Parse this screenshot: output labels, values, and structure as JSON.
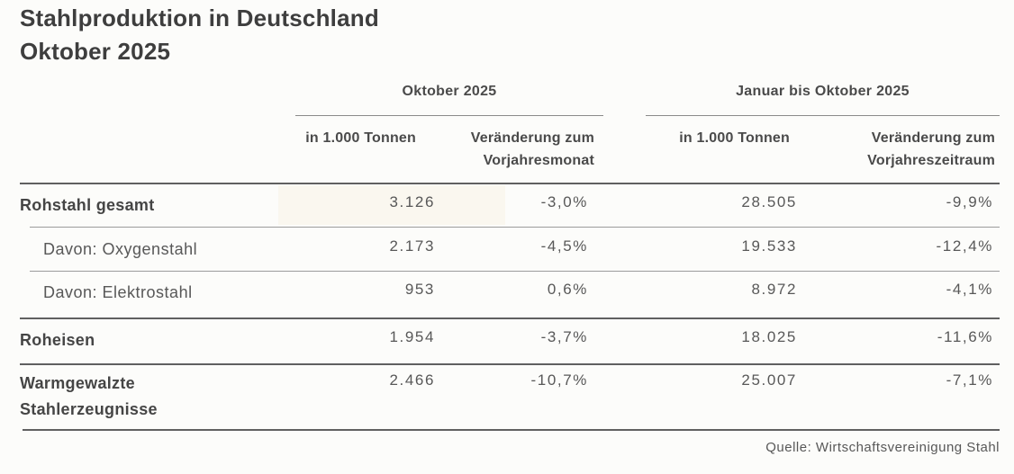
{
  "title": {
    "line1": "Stahlproduktion in Deutschland",
    "line2": "Oktober 2025"
  },
  "colors": {
    "background": "#fcfcfa",
    "text_dark": "#3e3e3e",
    "text_body": "#585858",
    "line_dark": "#606060",
    "line_light": "#9b9b9b",
    "cell_highlight": "#f8f3e6"
  },
  "chart_data": {
    "type": "table",
    "title": "Stahlproduktion in Deutschland",
    "subtitle": "Oktober 2025",
    "column_groups": [
      {
        "label": "Oktober 2025",
        "columns": [
          "in 1.000 Tonnen",
          "Veränderung zum Vorjahresmonat"
        ]
      },
      {
        "label": "Januar bis Oktober 2025",
        "columns": [
          "in 1.000 Tonnen",
          "Veränderung zum Vorjahreszeitraum"
        ]
      }
    ],
    "rows": [
      {
        "label": "Rohstahl gesamt",
        "style": "main",
        "values": [
          "3.126",
          "-3,0%",
          "28.505",
          "-9,9%"
        ]
      },
      {
        "label": "Davon: Oxygenstahl",
        "style": "sub",
        "values": [
          "2.173",
          "-4,5%",
          "19.533",
          "-12,4%"
        ]
      },
      {
        "label": "Davon: Elektrostahl",
        "style": "sub",
        "values": [
          "953",
          "0,6%",
          "8.972",
          "-4,1%"
        ]
      },
      {
        "label": "Roheisen",
        "style": "main",
        "values": [
          "1.954",
          "-3,7%",
          "18.025",
          "-11,6%"
        ]
      },
      {
        "label": "Warmgewalzte Stahlerzeugnisse",
        "style": "main",
        "values": [
          "2.466",
          "-10,7%",
          "25.007",
          "-7,1%"
        ]
      }
    ],
    "source": "Quelle: Wirtschaftsvereinigung Stahl"
  }
}
